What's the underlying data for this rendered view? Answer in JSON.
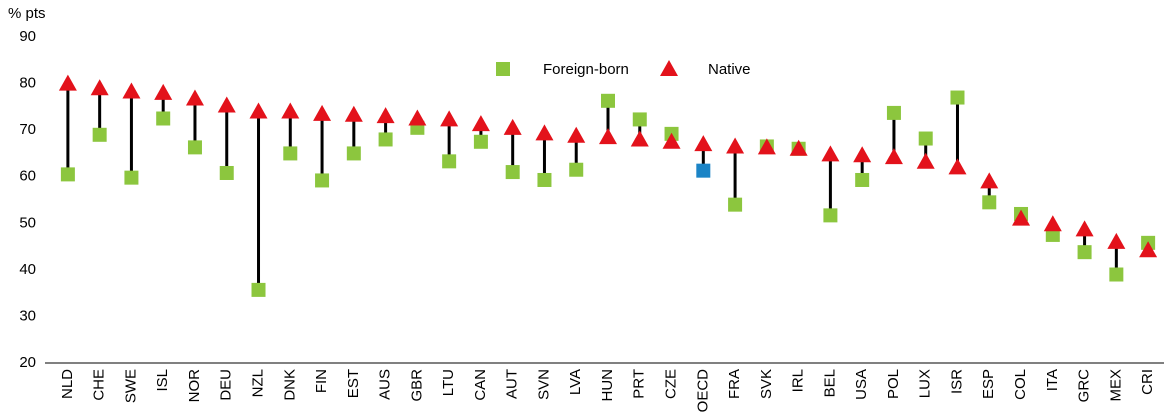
{
  "chart_data": {
    "type": "dot-range",
    "y_axis_label": "% pts",
    "categories": [
      "NLD",
      "CHE",
      "SWE",
      "ISL",
      "NOR",
      "DEU",
      "NZL",
      "DNK",
      "FIN",
      "EST",
      "AUS",
      "GBR",
      "LTU",
      "CAN",
      "AUT",
      "SVN",
      "LVA",
      "HUN",
      "PRT",
      "CZE",
      "OECD",
      "FRA",
      "SVK",
      "IRL",
      "BEL",
      "USA",
      "POL",
      "LUX",
      "ISR",
      "ESP",
      "COL",
      "ITA",
      "GRC",
      "MEX",
      "CRI"
    ],
    "series": [
      {
        "name": "Foreign-born",
        "color": "#8cc63e",
        "marker": "square",
        "point_colors": [
          "#8cc63e",
          "#8cc63e",
          "#8cc63e",
          "#8cc63e",
          "#8cc63e",
          "#8cc63e",
          "#8cc63e",
          "#8cc63e",
          "#8cc63e",
          "#8cc63e",
          "#8cc63e",
          "#8cc63e",
          "#8cc63e",
          "#8cc63e",
          "#8cc63e",
          "#8cc63e",
          "#8cc63e",
          "#8cc63e",
          "#8cc63e",
          "#8cc63e",
          "#1b84c6",
          "#8cc63e",
          "#8cc63e",
          "#8cc63e",
          "#8cc63e",
          "#8cc63e",
          "#8cc63e",
          "#8cc63e",
          "#8cc63e",
          "#8cc63e",
          "#8cc63e",
          "#8cc63e",
          "#8cc63e",
          "#8cc63e",
          "#8cc63e"
        ],
        "values": [
          60.5,
          69,
          59.8,
          72.5,
          66.3,
          60.8,
          35.7,
          65,
          59.2,
          65,
          68,
          70.5,
          63.3,
          67.5,
          61,
          59.3,
          61.5,
          76.3,
          72.3,
          69.2,
          61.3,
          54,
          66.5,
          66,
          51.7,
          59.3,
          73.7,
          68.2,
          77,
          54.5,
          52,
          47.5,
          43.8,
          39,
          45.8
        ]
      },
      {
        "name": "Native",
        "color": "#e3121b",
        "marker": "triangle",
        "values": [
          80,
          79,
          78.3,
          78,
          76.8,
          75.3,
          74,
          74,
          73.5,
          73.3,
          73,
          72.5,
          72.3,
          71.3,
          70.5,
          69.3,
          68.8,
          68.5,
          68,
          67.5,
          67,
          66.5,
          66.3,
          66,
          64.8,
          64.6,
          64.2,
          63.2,
          62,
          59,
          51,
          49.8,
          48.7,
          46,
          44.2
        ]
      }
    ],
    "ylim": [
      20,
      90
    ],
    "yticks": [
      20,
      30,
      40,
      50,
      60,
      70,
      80,
      90
    ],
    "grid": false
  }
}
